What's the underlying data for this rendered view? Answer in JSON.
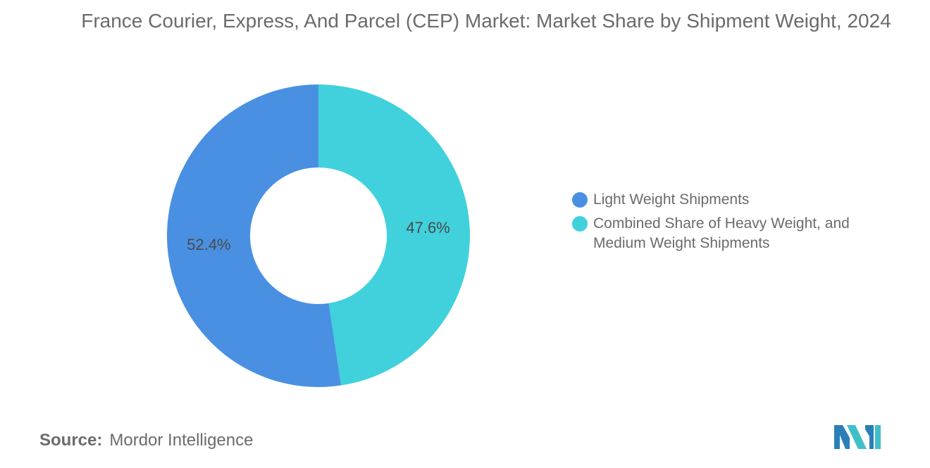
{
  "title": "France Courier, Express, And Parcel (CEP) Market: Market Share by Shipment Weight, 2024",
  "source": {
    "label": "Source:",
    "value": "Mordor Intelligence"
  },
  "colors": {
    "light": "#4a90e2",
    "combined": "#40d1dc",
    "text": "#6b6b6b"
  },
  "logo": {
    "icon": "mordor-intelligence-logo-icon"
  },
  "chart_data": {
    "type": "pie",
    "variant": "donut",
    "legend_placement": "right",
    "categories": [
      "Light Weight Shipments",
      "Combined Share of Heavy Weight, and Medium Weight Shipments"
    ],
    "values": [
      52.4,
      47.6
    ],
    "data_labels": [
      "52.4%",
      "47.6%"
    ],
    "colors": [
      "#4a90e2",
      "#40d1dc"
    ]
  }
}
